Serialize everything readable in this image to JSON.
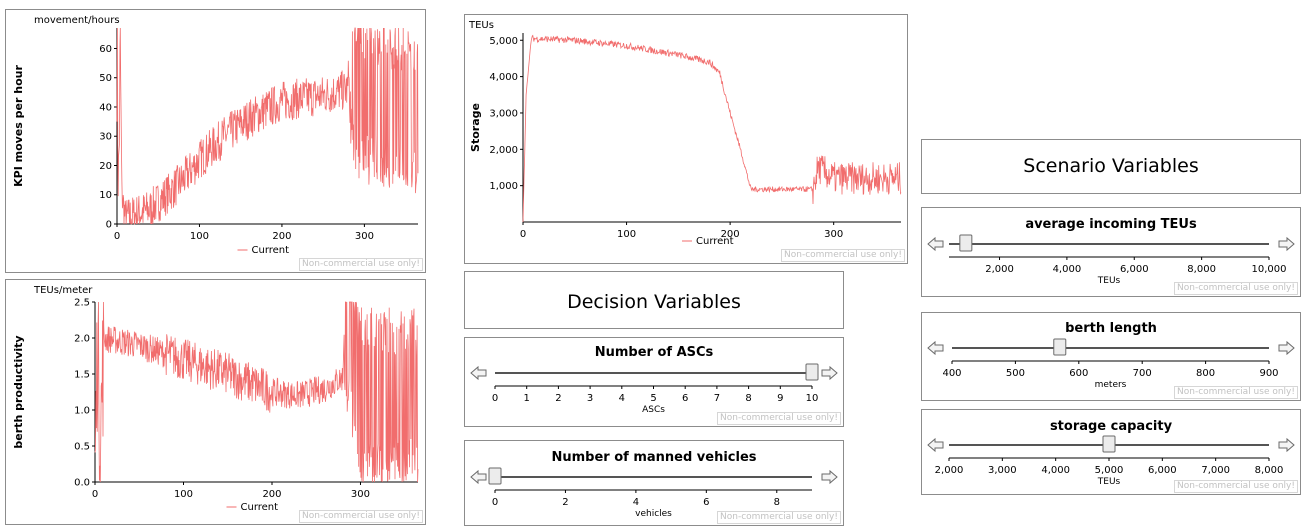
{
  "charts": [
    {
      "id": "kpi",
      "type": "line",
      "units": "movement/hours",
      "ylabel": "KPI moves per hour",
      "legend": "Current",
      "xlim": [
        0,
        365
      ],
      "ylim": [
        0,
        67
      ],
      "xticks": [
        0,
        100,
        200,
        300
      ],
      "yticks": [
        0,
        10,
        20,
        30,
        40,
        50,
        60
      ],
      "color": "#f16d6d",
      "series_keypoints": [
        [
          0,
          60
        ],
        [
          2,
          12
        ],
        [
          4,
          60
        ],
        [
          6,
          10
        ],
        [
          10,
          2
        ],
        [
          20,
          3
        ],
        [
          40,
          5
        ],
        [
          60,
          10
        ],
        [
          80,
          15
        ],
        [
          100,
          22
        ],
        [
          130,
          30
        ],
        [
          160,
          36
        ],
        [
          200,
          42
        ],
        [
          250,
          44
        ],
        [
          280,
          46
        ],
        [
          282,
          60
        ],
        [
          290,
          45
        ],
        [
          300,
          44
        ],
        [
          320,
          42
        ],
        [
          340,
          40
        ],
        [
          365,
          40
        ]
      ],
      "watermark": "Non-commercial use only!"
    },
    {
      "id": "berth",
      "type": "line",
      "units": "TEUs/meter",
      "ylabel": "berth productivity",
      "legend": "Current",
      "xlim": [
        0,
        365
      ],
      "ylim": [
        0,
        2.5
      ],
      "xticks": [
        0,
        100,
        200,
        300
      ],
      "yticks": [
        0.0,
        0.5,
        1.0,
        1.5,
        2.0,
        2.5
      ],
      "ytick_labels": [
        "0.0",
        "0.5",
        "1.0",
        "1.5",
        "2.0",
        "2.5"
      ],
      "color": "#f16d6d",
      "series_keypoints": [
        [
          0,
          0.1
        ],
        [
          3,
          2.1
        ],
        [
          6,
          0.6
        ],
        [
          10,
          2.0
        ],
        [
          50,
          1.9
        ],
        [
          100,
          1.7
        ],
        [
          150,
          1.5
        ],
        [
          200,
          1.25
        ],
        [
          230,
          1.2
        ],
        [
          260,
          1.3
        ],
        [
          280,
          1.45
        ],
        [
          282,
          2.4
        ],
        [
          300,
          1.2
        ],
        [
          365,
          1.2
        ]
      ],
      "watermark": "Non-commercial use only!"
    },
    {
      "id": "storage",
      "type": "line",
      "units": "TEUs",
      "ylabel": "Storage",
      "legend": "Current",
      "xlim": [
        0,
        365
      ],
      "ylim": [
        0,
        5200
      ],
      "xticks": [
        0,
        100,
        200,
        300
      ],
      "yticks": [
        1000,
        2000,
        3000,
        4000,
        5000
      ],
      "ytick_labels": [
        "1,000",
        "2,000",
        "3,000",
        "4,000",
        "5,000"
      ],
      "color": "#f16d6d",
      "series_keypoints": [
        [
          0,
          0
        ],
        [
          3,
          3500
        ],
        [
          8,
          5050
        ],
        [
          50,
          5000
        ],
        [
          100,
          4850
        ],
        [
          150,
          4600
        ],
        [
          180,
          4400
        ],
        [
          190,
          4100
        ],
        [
          200,
          3000
        ],
        [
          210,
          2000
        ],
        [
          220,
          900
        ],
        [
          250,
          900
        ],
        [
          280,
          900
        ],
        [
          285,
          1500
        ],
        [
          300,
          1200
        ],
        [
          365,
          1200
        ]
      ],
      "watermark": "Non-commercial use only!"
    }
  ],
  "decision": {
    "title": "Decision Variables",
    "sliders": [
      {
        "id": "ascs",
        "title": "Number of ASCs",
        "unit": "ASCs",
        "min": 0,
        "max": 10,
        "value": 10,
        "ticks": [
          0,
          1,
          2,
          3,
          4,
          5,
          6,
          7,
          8,
          9,
          10
        ],
        "tick_labels": [
          "0",
          "1",
          "2",
          "3",
          "4",
          "5",
          "6",
          "7",
          "8",
          "9",
          "10"
        ],
        "watermark": "Non-commercial use only!"
      },
      {
        "id": "vehicles",
        "title": "Number of manned vehicles",
        "unit": "vehicles",
        "min": 0,
        "max": 9,
        "value": 0,
        "ticks": [
          0,
          2,
          4,
          6,
          8
        ],
        "tick_labels": [
          "0",
          "2",
          "4",
          "6",
          "8"
        ],
        "watermark": "Non-commercial use only!"
      }
    ]
  },
  "scenario": {
    "title": "Scenario Variables",
    "sliders": [
      {
        "id": "teus",
        "title": "average incoming TEUs",
        "unit": "TEUs",
        "min": 500,
        "max": 10000,
        "value": 1000,
        "ticks": [
          2000,
          4000,
          6000,
          8000,
          10000
        ],
        "tick_labels": [
          "2,000",
          "4,000",
          "6,000",
          "8,000",
          "10,000"
        ],
        "watermark": "Non-commercial use only!"
      },
      {
        "id": "berthlen",
        "title": "berth length",
        "unit": "meters",
        "min": 400,
        "max": 900,
        "value": 570,
        "ticks": [
          400,
          500,
          600,
          700,
          800,
          900
        ],
        "tick_labels": [
          "400",
          "500",
          "600",
          "700",
          "800",
          "900"
        ],
        "watermark": "Non-commercial use only!"
      },
      {
        "id": "capacity",
        "title": "storage capacity",
        "unit": "TEUs",
        "min": 2000,
        "max": 8000,
        "value": 5000,
        "ticks": [
          2000,
          3000,
          4000,
          5000,
          6000,
          7000,
          8000
        ],
        "tick_labels": [
          "2,000",
          "3,000",
          "4,000",
          "5,000",
          "6,000",
          "7,000",
          "8,000"
        ],
        "watermark": "Non-commercial use only!"
      }
    ]
  }
}
